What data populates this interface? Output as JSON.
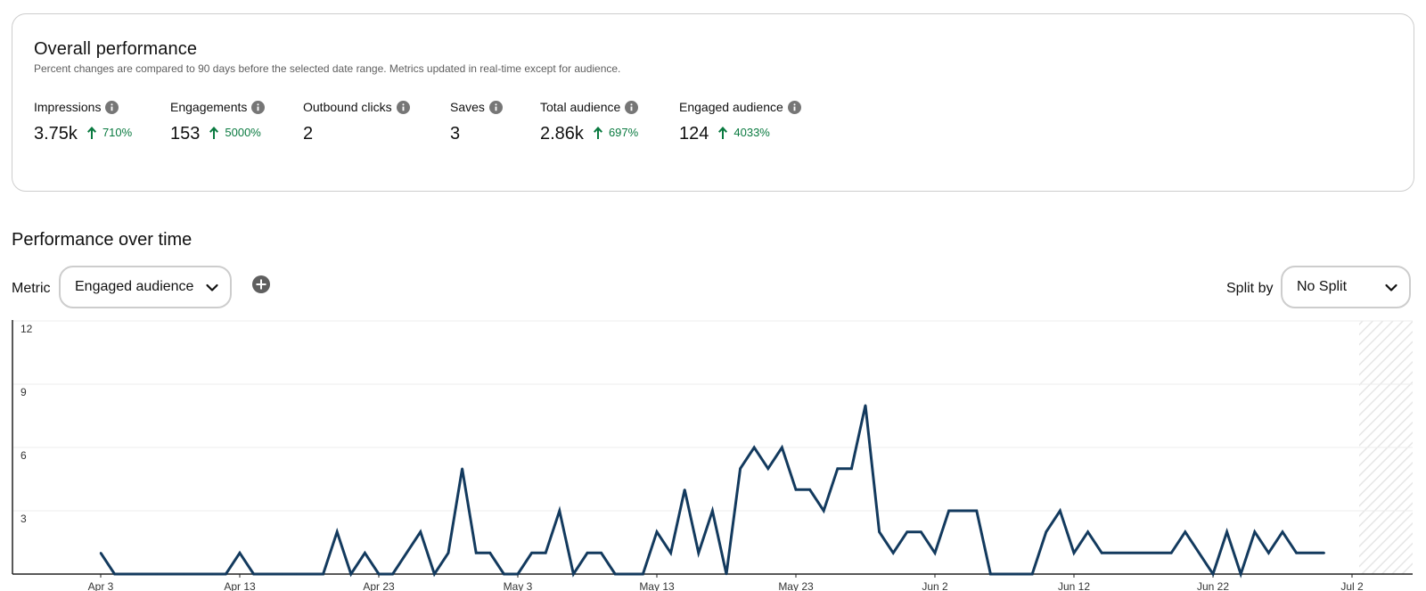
{
  "overall": {
    "title": "Overall performance",
    "subtitle": "Percent changes are compared to 90 days before the selected date range. Metrics updated in real-time except for audience.",
    "metrics": [
      {
        "label": "Impressions",
        "value": "3.75k",
        "change": "710%"
      },
      {
        "label": "Engagements",
        "value": "153",
        "change": "5000%"
      },
      {
        "label": "Outbound clicks",
        "value": "2",
        "change": ""
      },
      {
        "label": "Saves",
        "value": "3",
        "change": ""
      },
      {
        "label": "Total audience",
        "value": "2.86k",
        "change": "697%"
      },
      {
        "label": "Engaged audience",
        "value": "124",
        "change": "4033%"
      }
    ],
    "change_color": "#0a7a40"
  },
  "over_time": {
    "title": "Performance over time",
    "metric_label": "Metric",
    "metric_value": "Engaged audience",
    "split_label": "Split by",
    "split_value": "No Split"
  },
  "chart_data": {
    "type": "line",
    "title": "",
    "xlabel": "",
    "ylabel": "",
    "ylim": [
      0,
      12
    ],
    "yticks": [
      3,
      6,
      9,
      12
    ],
    "grid": true,
    "x_tick_labels": [
      "Apr 3",
      "Apr 13",
      "Apr 23",
      "May 3",
      "May 13",
      "May 23",
      "Jun 2",
      "Jun 12",
      "Jun 22",
      "Jul 2"
    ],
    "x_start": "Apr 3",
    "x_end": "Jul 2",
    "series_color": "#133a5e",
    "series": [
      {
        "values": [
          1,
          0,
          0,
          0,
          0,
          0,
          0,
          0,
          0,
          0,
          1,
          0,
          0,
          0,
          0,
          0,
          0,
          2,
          0,
          1,
          0,
          0,
          1,
          2,
          0,
          1,
          5,
          1,
          1,
          0,
          0,
          1,
          1,
          3,
          0,
          1,
          1,
          0,
          0,
          0,
          2,
          1,
          4,
          1,
          3,
          0,
          5,
          6,
          5,
          6,
          4,
          4,
          3,
          5,
          5,
          8,
          2,
          1,
          2,
          2,
          1,
          3,
          3,
          3,
          0,
          0,
          0,
          0,
          2,
          3,
          1,
          2,
          1,
          1,
          1,
          1,
          1,
          1,
          2,
          1,
          0,
          2,
          0,
          2,
          1,
          2,
          1,
          1,
          1
        ]
      }
    ]
  }
}
